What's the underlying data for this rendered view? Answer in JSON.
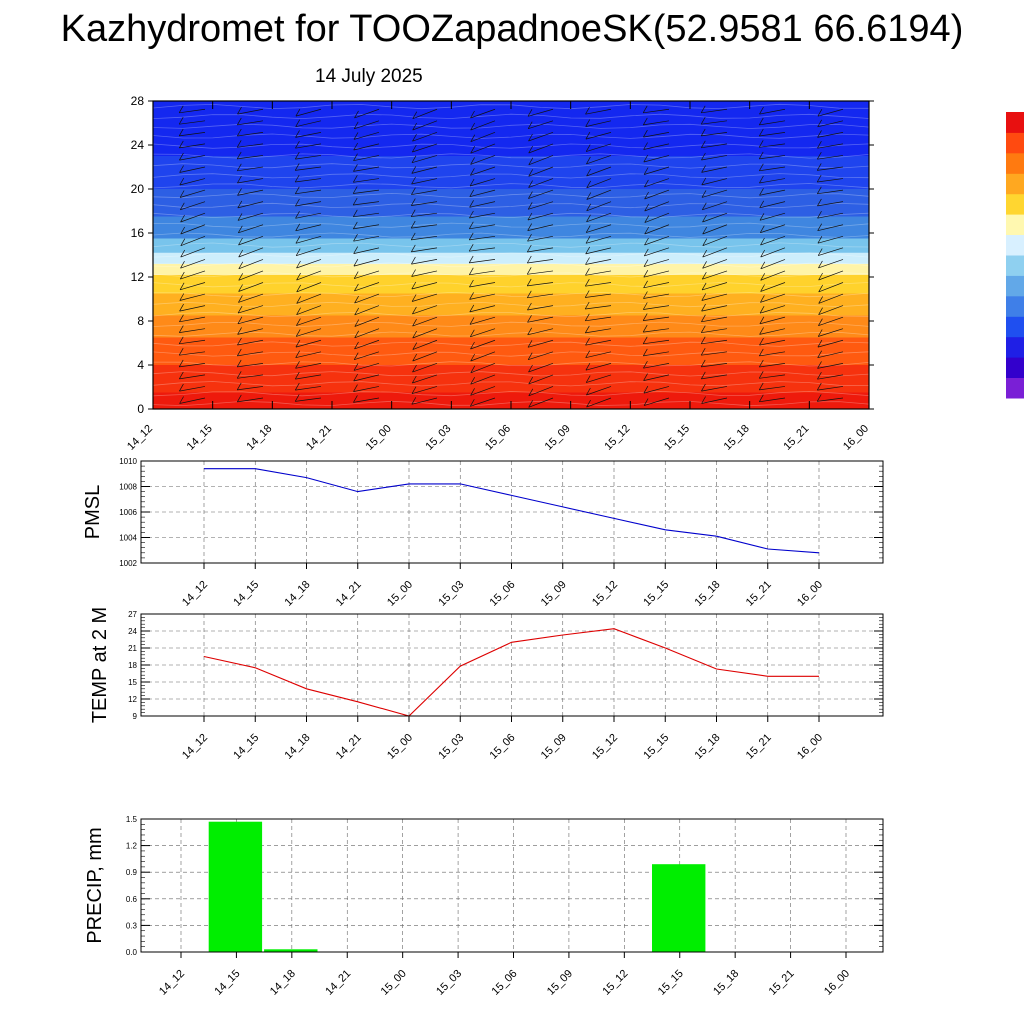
{
  "title": "Kazhydromet for TOOZapadnoeSK(52.9581 66.6194)",
  "subtitle": "14 July 2025",
  "colorbar": {
    "colors": [
      "#7a1fd6",
      "#3300cc",
      "#1f1fe6",
      "#1f4ff0",
      "#3f7fe8",
      "#62a8e8",
      "#8fd0f0",
      "#d8f0ff",
      "#fff8b0",
      "#ffd630",
      "#ffa820",
      "#ff7a10",
      "#ff4a10",
      "#e81010"
    ]
  },
  "chart_data": [
    {
      "type": "heatmap",
      "name": "cross-section",
      "x_ticks": [
        "14_12",
        "14_15",
        "14_18",
        "14_21",
        "15_00",
        "15_03",
        "15_06",
        "15_09",
        "15_12",
        "15_15",
        "15_18",
        "15_21",
        "16_00"
      ],
      "y_ticks": [
        0,
        4,
        8,
        12,
        16,
        20,
        24,
        28
      ],
      "ylim": [
        0,
        28
      ],
      "color_bands": [
        {
          "y0": 0,
          "y1": 1.5,
          "color": "#ee1a0c"
        },
        {
          "y0": 1.5,
          "y1": 4,
          "color": "#f6320e"
        },
        {
          "y0": 4,
          "y1": 6.5,
          "color": "#ff5a10"
        },
        {
          "y0": 6.5,
          "y1": 8.5,
          "color": "#ff8a18"
        },
        {
          "y0": 8.5,
          "y1": 10.5,
          "color": "#ffb020"
        },
        {
          "y0": 10.5,
          "y1": 12.2,
          "color": "#ffd22c"
        },
        {
          "y0": 12.2,
          "y1": 13.2,
          "color": "#fff4a8"
        },
        {
          "y0": 13.2,
          "y1": 14.2,
          "color": "#cdeefc"
        },
        {
          "y0": 14.2,
          "y1": 15.5,
          "color": "#78c4ec"
        },
        {
          "y0": 15.5,
          "y1": 17.5,
          "color": "#3f86e0"
        },
        {
          "y0": 17.5,
          "y1": 20,
          "color": "#2d5fe4"
        },
        {
          "y0": 20,
          "y1": 23,
          "color": "#1f44ee"
        },
        {
          "y0": 23,
          "y1": 28,
          "color": "#1428f0"
        }
      ],
      "wind_barbs": true
    },
    {
      "type": "line",
      "ylabel": "PMSL",
      "categories": [
        "14_12",
        "14_15",
        "14_18",
        "14_21",
        "15_00",
        "15_03",
        "15_06",
        "15_09",
        "15_12",
        "15_15",
        "15_18",
        "15_21",
        "16_00"
      ],
      "ylim": [
        1002,
        1010
      ],
      "y_ticks": [
        1002,
        1004,
        1006,
        1008,
        1010
      ],
      "series": [
        {
          "color": "#0000cc",
          "values": [
            1009.4,
            1009.4,
            1008.7,
            1007.6,
            1008.2,
            1008.2,
            1007.3,
            1006.4,
            1005.5,
            1004.6,
            1004.1,
            1003.1,
            1002.8
          ]
        }
      ]
    },
    {
      "type": "line",
      "ylabel": "TEMP at 2 M",
      "categories": [
        "14_12",
        "14_15",
        "14_18",
        "14_21",
        "15_00",
        "15_03",
        "15_06",
        "15_09",
        "15_12",
        "15_15",
        "15_18",
        "15_21",
        "16_00"
      ],
      "ylim": [
        9,
        27
      ],
      "y_ticks": [
        9,
        12,
        15,
        18,
        21,
        24,
        27
      ],
      "series": [
        {
          "color": "#dd0000",
          "values": [
            19.5,
            17.5,
            13.8,
            11.5,
            9.0,
            17.8,
            22.0,
            23.3,
            24.4,
            21.0,
            17.3,
            16.0,
            16.0
          ]
        }
      ]
    },
    {
      "type": "bar",
      "ylabel": "PRECIP, mm",
      "categories": [
        "14_12",
        "14_15",
        "14_18",
        "14_21",
        "15_00",
        "15_03",
        "15_06",
        "15_09",
        "15_12",
        "15_15",
        "15_18",
        "15_21",
        "16_00"
      ],
      "ylim": [
        0,
        1.5
      ],
      "y_ticks": [
        "0.0",
        "0.3",
        "0.6",
        "0.9",
        "1.2",
        "1.5"
      ],
      "series": [
        {
          "color": "#00ee00",
          "values": [
            0,
            1.47,
            0.03,
            0,
            0,
            0,
            0,
            0,
            0,
            0.99,
            0,
            0,
            0
          ]
        }
      ]
    }
  ]
}
